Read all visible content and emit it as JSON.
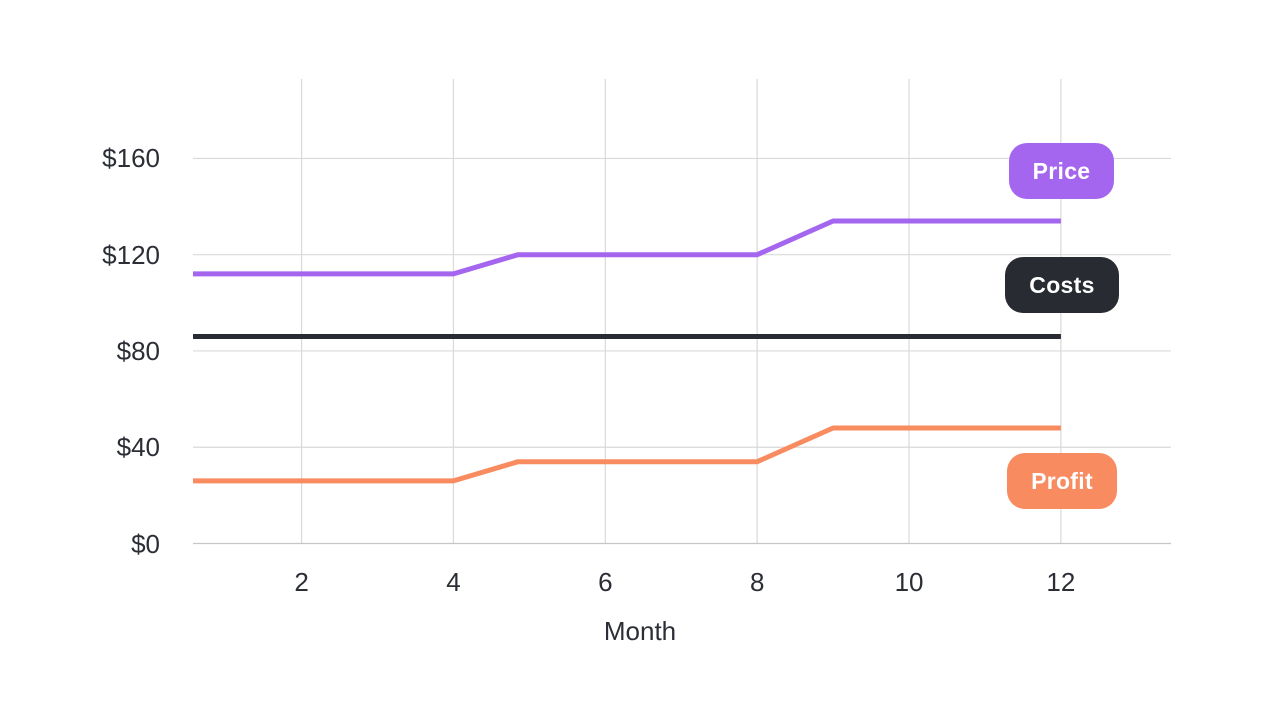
{
  "page": {
    "background": "#ffffff",
    "text_color": "#2b2e35"
  },
  "chart_data": {
    "type": "line",
    "title": "",
    "xlabel": "Month",
    "ylabel": "",
    "x_domain": [
      0.57,
      13.45
    ],
    "y_domain": [
      0,
      193
    ],
    "grid": true,
    "legend_position": "right-end-of-lines",
    "grid_color": "#d9d9d9",
    "axis_line_color": "#c6c6c6",
    "x_ticks": [
      {
        "value": 2,
        "label": "2"
      },
      {
        "value": 4,
        "label": "4"
      },
      {
        "value": 6,
        "label": "6"
      },
      {
        "value": 8,
        "label": "8"
      },
      {
        "value": 10,
        "label": "10"
      },
      {
        "value": 12,
        "label": "12"
      }
    ],
    "y_ticks": [
      {
        "value": 0,
        "label": "$0"
      },
      {
        "value": 40,
        "label": "$40"
      },
      {
        "value": 80,
        "label": "$80"
      },
      {
        "value": 120,
        "label": "$120"
      },
      {
        "value": 160,
        "label": "$160"
      }
    ],
    "series": [
      {
        "name": "Price",
        "color": "#a566ef",
        "points": [
          [
            0.57,
            112
          ],
          [
            4,
            112
          ],
          [
            4.85,
            120
          ],
          [
            8,
            120
          ],
          [
            9,
            134
          ],
          [
            12,
            134
          ]
        ]
      },
      {
        "name": "Costs",
        "color": "#282b31",
        "points": [
          [
            0.57,
            86
          ],
          [
            12,
            86
          ]
        ]
      },
      {
        "name": "Profit",
        "color": "#f98b60",
        "points": [
          [
            0.57,
            26
          ],
          [
            4,
            26
          ],
          [
            4.85,
            34
          ],
          [
            8,
            34
          ],
          [
            9,
            48
          ],
          [
            12,
            48
          ]
        ]
      }
    ]
  }
}
